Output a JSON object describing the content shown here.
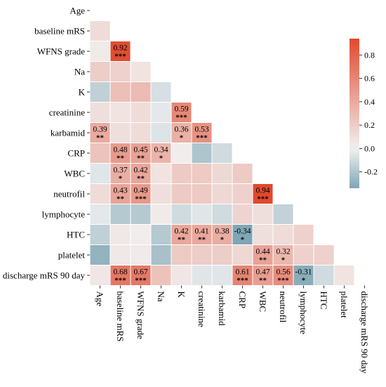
{
  "chart_data": {
    "type": "heatmap",
    "title": "",
    "xlabel": "",
    "ylabel": "",
    "variables": [
      "Age",
      "baseline mRS",
      "WFNS grade",
      "Na",
      "K",
      "creatinine",
      "karbamid",
      "CRP",
      "WBC",
      "neutrofil",
      "lymphocyte",
      "HTC",
      "platelet",
      "discharge mRS 90 day"
    ],
    "lower_triangle": true,
    "matrix": [
      [],
      [
        0.12
      ],
      [
        0.04,
        0.92
      ],
      [
        0.2,
        0.18,
        0.08
      ],
      [
        -0.15,
        0.28,
        0.3,
        -0.08
      ],
      [
        0.1,
        0.08,
        0.12,
        -0.04,
        0.59
      ],
      [
        0.39,
        0.1,
        0.12,
        -0.06,
        0.36,
        0.53
      ],
      [
        0.25,
        0.48,
        0.45,
        0.34,
        0.02,
        -0.2,
        -0.1
      ],
      [
        -0.05,
        0.37,
        0.42,
        0.08,
        0.22,
        0.22,
        0.14,
        0.22
      ],
      [
        0.12,
        0.43,
        0.49,
        0.1,
        0.22,
        0.22,
        0.14,
        0.18,
        0.94
      ],
      [
        -0.04,
        -0.18,
        -0.18,
        0.04,
        -0.1,
        -0.05,
        -0.1,
        0.16,
        0.1,
        -0.14
      ],
      [
        -0.15,
        0.05,
        0.02,
        -0.18,
        0.42,
        0.41,
        0.38,
        -0.34,
        0.1,
        0.12,
        0.18
      ],
      [
        -0.28,
        0.05,
        0.04,
        -0.22,
        0.22,
        0.2,
        0.2,
        0.14,
        0.44,
        0.32,
        0.18,
        0.18
      ],
      [
        0.06,
        0.68,
        0.67,
        0.26,
        0.06,
        -0.05,
        -0.05,
        0.61,
        0.47,
        0.56,
        -0.31,
        -0.1,
        0.08
      ]
    ],
    "labels": [
      {
        "row": 2,
        "col": 1,
        "value": "0.92",
        "stars": "***"
      },
      {
        "row": 5,
        "col": 4,
        "value": "0.59",
        "stars": "***"
      },
      {
        "row": 6,
        "col": 0,
        "value": "0.39",
        "stars": "**"
      },
      {
        "row": 6,
        "col": 4,
        "value": "0.36",
        "stars": "*"
      },
      {
        "row": 6,
        "col": 5,
        "value": "0.53",
        "stars": "***"
      },
      {
        "row": 7,
        "col": 1,
        "value": "0.48",
        "stars": "**"
      },
      {
        "row": 7,
        "col": 2,
        "value": "0.45",
        "stars": "**"
      },
      {
        "row": 7,
        "col": 3,
        "value": "0.34",
        "stars": "*"
      },
      {
        "row": 8,
        "col": 1,
        "value": "0.37",
        "stars": "*"
      },
      {
        "row": 8,
        "col": 2,
        "value": "0.42",
        "stars": "**"
      },
      {
        "row": 9,
        "col": 1,
        "value": "0.43",
        "stars": "**"
      },
      {
        "row": 9,
        "col": 2,
        "value": "0.49",
        "stars": "***"
      },
      {
        "row": 9,
        "col": 8,
        "value": "0.94",
        "stars": "***"
      },
      {
        "row": 11,
        "col": 4,
        "value": "0.42",
        "stars": "**"
      },
      {
        "row": 11,
        "col": 5,
        "value": "0.41",
        "stars": "**"
      },
      {
        "row": 11,
        "col": 6,
        "value": "0.38",
        "stars": "*"
      },
      {
        "row": 11,
        "col": 7,
        "value": "-0.34",
        "stars": "*"
      },
      {
        "row": 12,
        "col": 8,
        "value": "0.44",
        "stars": "**"
      },
      {
        "row": 12,
        "col": 9,
        "value": "0.32",
        "stars": "*"
      },
      {
        "row": 13,
        "col": 1,
        "value": "0.68",
        "stars": "***"
      },
      {
        "row": 13,
        "col": 2,
        "value": "0.67",
        "stars": "***"
      },
      {
        "row": 13,
        "col": 7,
        "value": "0.61",
        "stars": "***"
      },
      {
        "row": 13,
        "col": 8,
        "value": "0.47",
        "stars": "**"
      },
      {
        "row": 13,
        "col": 9,
        "value": "0.56",
        "stars": "***"
      },
      {
        "row": 13,
        "col": 10,
        "value": "-0.31",
        "stars": "*"
      }
    ],
    "colorbar": {
      "min": -0.34,
      "max": 0.94,
      "ticks": [
        "-0.2",
        "0.0",
        "0.2",
        "0.4",
        "0.6",
        "0.8"
      ],
      "low_color": "#7fa6b4",
      "mid_color": "#f1f1f1",
      "high_color": "#e0492e"
    }
  }
}
